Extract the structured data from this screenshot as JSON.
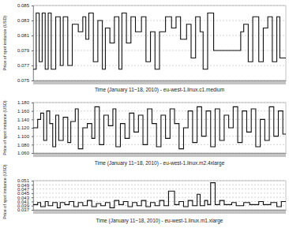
{
  "chart_data": [
    {
      "type": "step",
      "color": "#111111",
      "grid": true,
      "tick_labels": "y",
      "xlabel": "Time (January 11~18, 2010) - eu-west-1.linux.c1.medium",
      "ylabel": "Price of spot instance (USD)",
      "xlim": [
        0,
        168
      ],
      "ylim": [
        0.075,
        0.085
      ],
      "yticks": [
        0.075,
        0.077,
        0.079,
        0.081,
        0.083,
        0.085
      ],
      "x": [
        0,
        2,
        4,
        6,
        8,
        10,
        12,
        15,
        18,
        20,
        23,
        26,
        30,
        33,
        35,
        37,
        40,
        43,
        46,
        48,
        51,
        54,
        57,
        59,
        62,
        65,
        68,
        72,
        75,
        78,
        81,
        84,
        88,
        92,
        95,
        98,
        102,
        105,
        108,
        111,
        113,
        116,
        120,
        138,
        140,
        143,
        146,
        150,
        153,
        156,
        159,
        162,
        164,
        168
      ],
      "values": [
        0.0765,
        0.084,
        0.0775,
        0.084,
        0.0765,
        0.084,
        0.0765,
        0.0835,
        0.077,
        0.0835,
        0.077,
        0.0825,
        0.0815,
        0.0835,
        0.0805,
        0.084,
        0.0775,
        0.083,
        0.0765,
        0.082,
        0.08,
        0.0835,
        0.0765,
        0.084,
        0.08,
        0.0835,
        0.0815,
        0.0835,
        0.0775,
        0.0815,
        0.0765,
        0.0815,
        0.0835,
        0.082,
        0.0835,
        0.0805,
        0.0825,
        0.078,
        0.0835,
        0.0815,
        0.0765,
        0.084,
        0.079,
        0.0815,
        0.0825,
        0.0775,
        0.0835,
        0.0775,
        0.082,
        0.0835,
        0.0775,
        0.0835,
        0.078,
        0.078
      ]
    },
    {
      "type": "step",
      "color": "#111111",
      "grid": true,
      "tick_labels": "y",
      "xlabel": "Time (January 11~18, 2010) - eu-west-1.linux.m2.4xlarge",
      "ylabel": "Price of spot instance (USD)",
      "xlim": [
        0,
        168
      ],
      "ylim": [
        1.06,
        1.18
      ],
      "yticks": [
        {
          "value": 1.06,
          "label": "1.060"
        },
        {
          "value": 1.08,
          "label": "1.080"
        },
        {
          "value": 1.1,
          "label": "1.100"
        },
        {
          "value": 1.12,
          "label": "1.120"
        },
        {
          "value": 1.14,
          "label": "1.140"
        },
        {
          "value": 1.16,
          "label": "1.160"
        },
        {
          "value": 1.18,
          "label": "1.180"
        }
      ],
      "x": [
        0,
        3,
        5,
        7,
        9,
        11,
        13,
        15,
        17,
        20,
        23,
        25,
        28,
        30,
        33,
        36,
        39,
        41,
        44,
        47,
        50,
        53,
        55,
        58,
        61,
        64,
        67,
        70,
        73,
        76,
        79,
        82,
        85,
        88,
        91,
        94,
        97,
        100,
        103,
        106,
        109,
        112,
        115,
        118,
        121,
        124,
        127,
        130,
        133,
        136,
        139,
        142,
        145,
        148,
        151,
        154,
        157,
        160,
        163,
        166,
        168
      ],
      "values": [
        1.12,
        1.14,
        1.155,
        1.09,
        1.16,
        1.13,
        1.075,
        1.15,
        1.09,
        1.145,
        1.085,
        1.135,
        1.165,
        1.07,
        1.12,
        1.13,
        1.095,
        1.17,
        1.08,
        1.15,
        1.125,
        1.165,
        1.075,
        1.13,
        1.095,
        1.155,
        1.11,
        1.15,
        1.08,
        1.165,
        1.13,
        1.075,
        1.15,
        1.095,
        1.165,
        1.13,
        1.07,
        1.12,
        1.16,
        1.085,
        1.17,
        1.1,
        1.16,
        1.075,
        1.165,
        1.09,
        1.15,
        1.12,
        1.17,
        1.085,
        1.16,
        1.11,
        1.165,
        1.075,
        1.14,
        1.09,
        1.17,
        1.1,
        1.16,
        1.105,
        1.105
      ]
    },
    {
      "type": "step",
      "color": "#111111",
      "grid": true,
      "tick_labels": "y",
      "xlabel": "Time (January 11~18, 2010) - eu-west-1.linux.m1.xlarge",
      "ylabel": "Price of spot instance (USD)",
      "xlim": [
        0,
        168
      ],
      "ylim": [
        0.037,
        0.051
      ],
      "yticks": [
        0.037,
        0.039,
        0.041,
        0.043,
        0.045,
        0.047,
        0.049,
        0.051
      ],
      "x": [
        0,
        3,
        5,
        8,
        10,
        13,
        16,
        18,
        21,
        24,
        27,
        30,
        33,
        36,
        39,
        42,
        45,
        48,
        51,
        54,
        57,
        60,
        63,
        66,
        69,
        72,
        75,
        78,
        81,
        84,
        87,
        90,
        94,
        97,
        100,
        103,
        106,
        109,
        111,
        114,
        116,
        118,
        121,
        124,
        127,
        132,
        135,
        140,
        144,
        150,
        153,
        158,
        162,
        165,
        168
      ],
      "values": [
        0.0395,
        0.0405,
        0.0385,
        0.041,
        0.039,
        0.0405,
        0.038,
        0.0405,
        0.0395,
        0.041,
        0.0385,
        0.0405,
        0.039,
        0.0415,
        0.0385,
        0.04,
        0.039,
        0.0405,
        0.038,
        0.0415,
        0.0395,
        0.041,
        0.0385,
        0.0405,
        0.039,
        0.0415,
        0.0385,
        0.0405,
        0.039,
        0.0415,
        0.039,
        0.046,
        0.0395,
        0.041,
        0.0385,
        0.0415,
        0.039,
        0.0445,
        0.039,
        0.0415,
        0.0395,
        0.05,
        0.0395,
        0.0415,
        0.0395,
        0.0405,
        0.039,
        0.0405,
        0.0395,
        0.041,
        0.0395,
        0.0405,
        0.0385,
        0.041,
        0.041
      ]
    }
  ]
}
